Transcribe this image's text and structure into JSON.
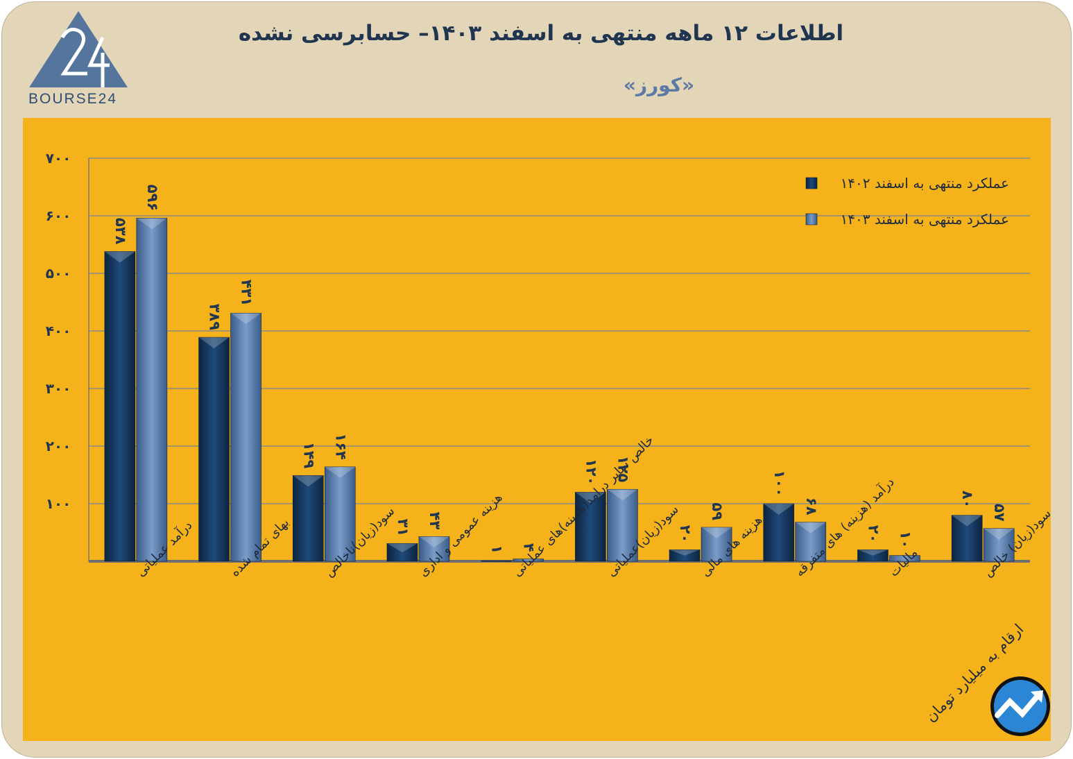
{
  "header": {
    "title": "اطلاعات ۱۲ ماهه منتهی به اسفند ۱۴۰۳– حسابرسی نشده",
    "subtitle": "«کورز»",
    "logo_text": "BOURSE24"
  },
  "footnote": "ارقام به میلیارد تومان",
  "colors": {
    "series_1402": "#17375e",
    "series_1403": "#4f71a0",
    "panel": "#f5b21b",
    "background": "#e2d5b8",
    "text": "#1f3550"
  },
  "chart_data": {
    "type": "bar",
    "title": "اطلاعات ۱۲ ماهه منتهی به اسفند ۱۴۰۳– حسابرسی نشده",
    "subtitle": "«کورز»",
    "xlabel": "",
    "ylabel": "",
    "ylim": [
      0,
      700
    ],
    "yticks": [
      100,
      200,
      300,
      400,
      500,
      600,
      700
    ],
    "ytick_labels": [
      "۱۰۰",
      "۲۰۰",
      "۳۰۰",
      "۴۰۰",
      "۵۰۰",
      "۶۰۰",
      "۷۰۰"
    ],
    "grid": true,
    "legend_position": "top-right",
    "categories": [
      "درآمد عملیاتی",
      "بهای تمام شده",
      "سود(زیان)ناخالص",
      "هزینه عمومی و اداری",
      "خالص سایر درامد(هزینه)های عملیاتی",
      "سود(زیان)عملیاتی",
      "هزینه های مالی",
      "درآمد (هزینه) های متفرقه",
      "مالیات",
      "سود(زیان) خالص"
    ],
    "series": [
      {
        "name": "عملکرد منتهی به اسفند ۱۴۰۲",
        "values": [
          538,
          389,
          149,
          31,
          1,
          120,
          20,
          100,
          20,
          80
        ],
        "labels": [
          "۵۳۸",
          "۳۸۹",
          "۱۴۹",
          "۳۱",
          "۱",
          "۱۲۰",
          "۲۰",
          "۱۰۰",
          "۲۰",
          "۸۰"
        ]
      },
      {
        "name": "عملکرد منتهی به اسفند ۱۴۰۳",
        "values": [
          596,
          431,
          164,
          43,
          4,
          125,
          59,
          68,
          10,
          57
        ],
        "labels": [
          "۵۹۶",
          "۴۳۱",
          "۱۶۴",
          "۴۳",
          "۴",
          "۱۲۵",
          "۵۹",
          "۶۸",
          "۱۰",
          "۵۷"
        ]
      }
    ]
  }
}
